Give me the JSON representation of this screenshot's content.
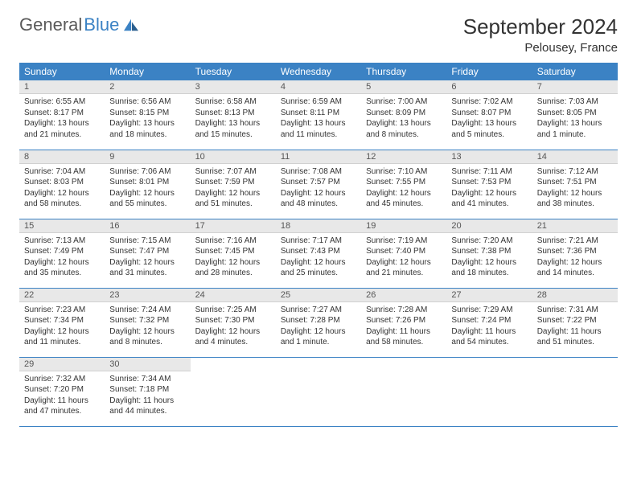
{
  "logo": {
    "text1": "General",
    "text2": "Blue"
  },
  "title": "September 2024",
  "location": "Pelousey, France",
  "colors": {
    "header_bg": "#3b82c4",
    "header_text": "#ffffff",
    "daynum_bg": "#e8e8e8",
    "border": "#3b82c4",
    "body_bg": "#ffffff",
    "text": "#333333"
  },
  "weekdays": [
    "Sunday",
    "Monday",
    "Tuesday",
    "Wednesday",
    "Thursday",
    "Friday",
    "Saturday"
  ],
  "days": [
    {
      "n": "1",
      "sunrise": "6:55 AM",
      "sunset": "8:17 PM",
      "daylight": "13 hours and 21 minutes."
    },
    {
      "n": "2",
      "sunrise": "6:56 AM",
      "sunset": "8:15 PM",
      "daylight": "13 hours and 18 minutes."
    },
    {
      "n": "3",
      "sunrise": "6:58 AM",
      "sunset": "8:13 PM",
      "daylight": "13 hours and 15 minutes."
    },
    {
      "n": "4",
      "sunrise": "6:59 AM",
      "sunset": "8:11 PM",
      "daylight": "13 hours and 11 minutes."
    },
    {
      "n": "5",
      "sunrise": "7:00 AM",
      "sunset": "8:09 PM",
      "daylight": "13 hours and 8 minutes."
    },
    {
      "n": "6",
      "sunrise": "7:02 AM",
      "sunset": "8:07 PM",
      "daylight": "13 hours and 5 minutes."
    },
    {
      "n": "7",
      "sunrise": "7:03 AM",
      "sunset": "8:05 PM",
      "daylight": "13 hours and 1 minute."
    },
    {
      "n": "8",
      "sunrise": "7:04 AM",
      "sunset": "8:03 PM",
      "daylight": "12 hours and 58 minutes."
    },
    {
      "n": "9",
      "sunrise": "7:06 AM",
      "sunset": "8:01 PM",
      "daylight": "12 hours and 55 minutes."
    },
    {
      "n": "10",
      "sunrise": "7:07 AM",
      "sunset": "7:59 PM",
      "daylight": "12 hours and 51 minutes."
    },
    {
      "n": "11",
      "sunrise": "7:08 AM",
      "sunset": "7:57 PM",
      "daylight": "12 hours and 48 minutes."
    },
    {
      "n": "12",
      "sunrise": "7:10 AM",
      "sunset": "7:55 PM",
      "daylight": "12 hours and 45 minutes."
    },
    {
      "n": "13",
      "sunrise": "7:11 AM",
      "sunset": "7:53 PM",
      "daylight": "12 hours and 41 minutes."
    },
    {
      "n": "14",
      "sunrise": "7:12 AM",
      "sunset": "7:51 PM",
      "daylight": "12 hours and 38 minutes."
    },
    {
      "n": "15",
      "sunrise": "7:13 AM",
      "sunset": "7:49 PM",
      "daylight": "12 hours and 35 minutes."
    },
    {
      "n": "16",
      "sunrise": "7:15 AM",
      "sunset": "7:47 PM",
      "daylight": "12 hours and 31 minutes."
    },
    {
      "n": "17",
      "sunrise": "7:16 AM",
      "sunset": "7:45 PM",
      "daylight": "12 hours and 28 minutes."
    },
    {
      "n": "18",
      "sunrise": "7:17 AM",
      "sunset": "7:43 PM",
      "daylight": "12 hours and 25 minutes."
    },
    {
      "n": "19",
      "sunrise": "7:19 AM",
      "sunset": "7:40 PM",
      "daylight": "12 hours and 21 minutes."
    },
    {
      "n": "20",
      "sunrise": "7:20 AM",
      "sunset": "7:38 PM",
      "daylight": "12 hours and 18 minutes."
    },
    {
      "n": "21",
      "sunrise": "7:21 AM",
      "sunset": "7:36 PM",
      "daylight": "12 hours and 14 minutes."
    },
    {
      "n": "22",
      "sunrise": "7:23 AM",
      "sunset": "7:34 PM",
      "daylight": "12 hours and 11 minutes."
    },
    {
      "n": "23",
      "sunrise": "7:24 AM",
      "sunset": "7:32 PM",
      "daylight": "12 hours and 8 minutes."
    },
    {
      "n": "24",
      "sunrise": "7:25 AM",
      "sunset": "7:30 PM",
      "daylight": "12 hours and 4 minutes."
    },
    {
      "n": "25",
      "sunrise": "7:27 AM",
      "sunset": "7:28 PM",
      "daylight": "12 hours and 1 minute."
    },
    {
      "n": "26",
      "sunrise": "7:28 AM",
      "sunset": "7:26 PM",
      "daylight": "11 hours and 58 minutes."
    },
    {
      "n": "27",
      "sunrise": "7:29 AM",
      "sunset": "7:24 PM",
      "daylight": "11 hours and 54 minutes."
    },
    {
      "n": "28",
      "sunrise": "7:31 AM",
      "sunset": "7:22 PM",
      "daylight": "11 hours and 51 minutes."
    },
    {
      "n": "29",
      "sunrise": "7:32 AM",
      "sunset": "7:20 PM",
      "daylight": "11 hours and 47 minutes."
    },
    {
      "n": "30",
      "sunrise": "7:34 AM",
      "sunset": "7:18 PM",
      "daylight": "11 hours and 44 minutes."
    }
  ],
  "labels": {
    "sunrise_prefix": "Sunrise: ",
    "sunset_prefix": "Sunset: ",
    "daylight_prefix": "Daylight: "
  },
  "grid": {
    "cols": 7,
    "start_offset": 0,
    "total_cells": 35
  }
}
